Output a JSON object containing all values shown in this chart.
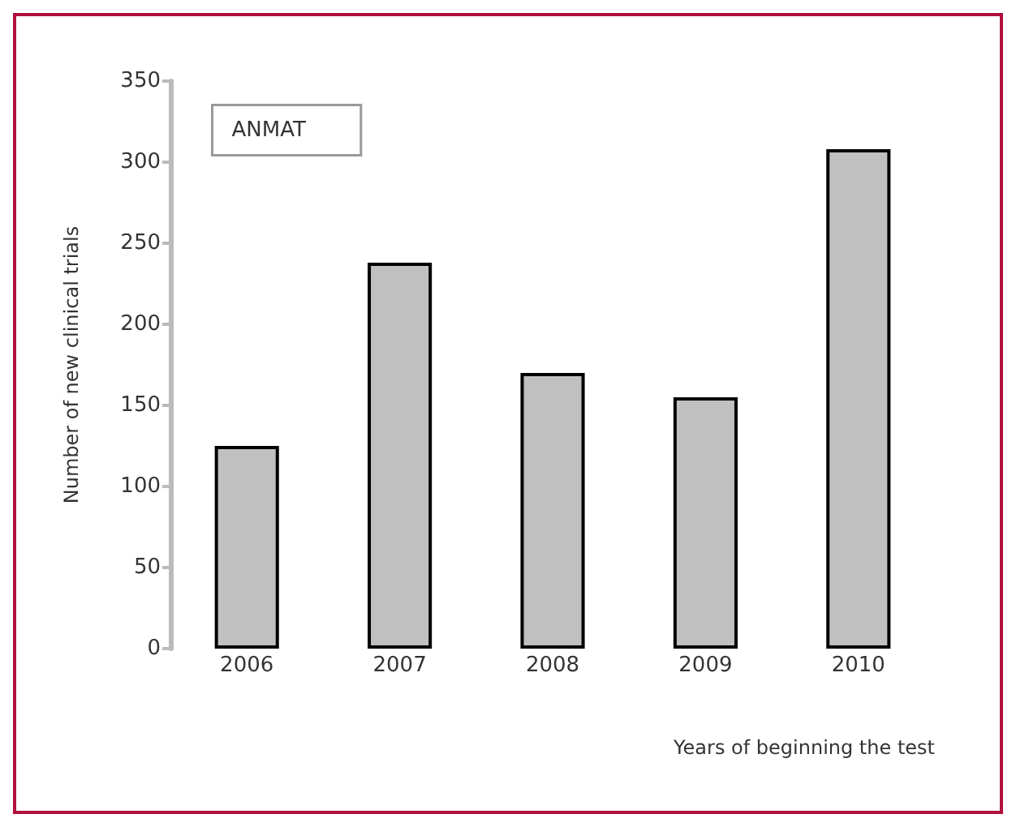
{
  "chart_data": {
    "type": "bar",
    "xlabel": "Years of beginning the test",
    "ylabel": "Number of new clinical trials",
    "categories": [
      "2006",
      "2007",
      "2008",
      "2009",
      "2010"
    ],
    "values": [
      125,
      238,
      170,
      155,
      308
    ],
    "color": "#c0c0c0",
    "ylim": [
      0,
      350
    ],
    "yticks": [
      0,
      50,
      100,
      150,
      200,
      250,
      300,
      350
    ],
    "grid": false,
    "annotations": [
      "ANMAT"
    ]
  }
}
